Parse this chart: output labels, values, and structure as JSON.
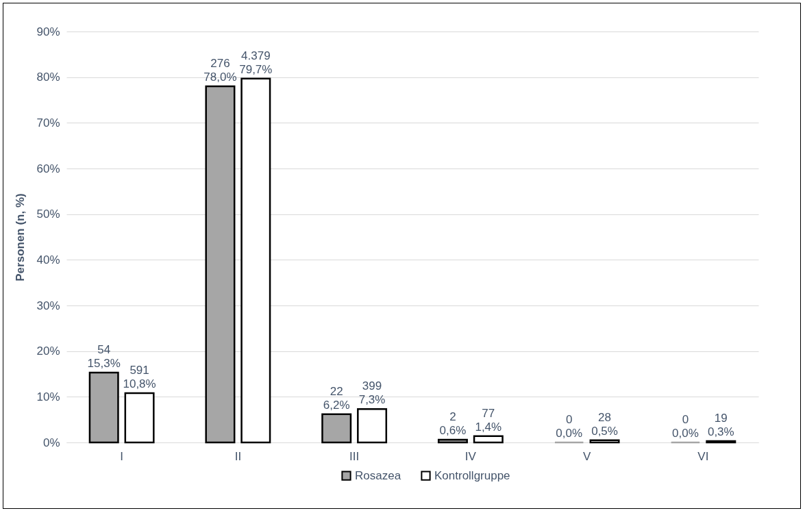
{
  "chart_data": {
    "type": "bar",
    "ylabel": "Personen (n, %)",
    "categories": [
      "I",
      "II",
      "III",
      "IV",
      "V",
      "VI"
    ],
    "series": [
      {
        "name": "Rosazea",
        "color": "#a6a6a6",
        "values": [
          15.3,
          78.0,
          6.2,
          0.6,
          0.0,
          0.0
        ],
        "value_labels": [
          "54\n15,3%",
          "276\n78,0%",
          "22\n6,2%",
          "2\n0,6%",
          "0\n0,0%",
          "0\n0,0%"
        ]
      },
      {
        "name": "Kontrollgruppe",
        "color": "#ffffff",
        "values": [
          10.8,
          79.7,
          7.3,
          1.4,
          0.5,
          0.3
        ],
        "value_labels": [
          "591\n10,8%",
          "4.379\n79,7%",
          "399\n7,3%",
          "77\n1,4%",
          "28\n0,5%",
          "19\n0,3%"
        ]
      }
    ],
    "ylim": [
      0,
      90
    ],
    "yticks": [
      {
        "value": 0,
        "label": "0%"
      },
      {
        "value": 10,
        "label": "10%"
      },
      {
        "value": 20,
        "label": "20%"
      },
      {
        "value": 30,
        "label": "30%"
      },
      {
        "value": 40,
        "label": "40%"
      },
      {
        "value": 50,
        "label": "50%"
      },
      {
        "value": 60,
        "label": "60%"
      },
      {
        "value": 70,
        "label": "70%"
      },
      {
        "value": 80,
        "label": "80%"
      },
      {
        "value": 90,
        "label": "90%"
      }
    ],
    "grid": "y",
    "legend": "bottom"
  }
}
